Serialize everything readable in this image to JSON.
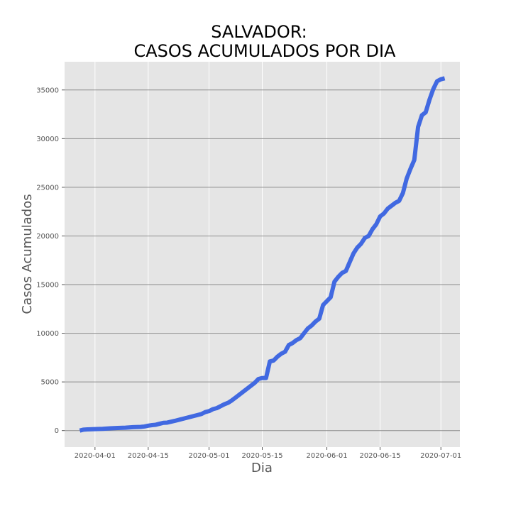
{
  "chart_data": {
    "type": "line",
    "title_lines": [
      "SALVADOR:",
      "CASOS ACUMULADOS POR DIA"
    ],
    "xlabel": "Dia",
    "ylabel": "Casos Acumulados",
    "x_ticks": [
      "2020-04-01",
      "2020-04-15",
      "2020-05-01",
      "2020-05-15",
      "2020-06-01",
      "2020-06-15",
      "2020-07-01"
    ],
    "y_ticks": [
      0,
      5000,
      10000,
      15000,
      20000,
      25000,
      30000,
      35000
    ],
    "ylim": [
      -1700,
      37900
    ],
    "xlim": [
      "2020-03-24",
      "2020-07-06"
    ],
    "grid": true,
    "line_color": "#4169e1",
    "background_color": "#e5e5e5",
    "series": [
      {
        "x": [
          "2020-03-28",
          "2020-03-29",
          "2020-03-30",
          "2020-04-01",
          "2020-04-03",
          "2020-04-05",
          "2020-04-07",
          "2020-04-09",
          "2020-04-11",
          "2020-04-13",
          "2020-04-14",
          "2020-04-15",
          "2020-04-16",
          "2020-04-17",
          "2020-04-18",
          "2020-04-19",
          "2020-04-20",
          "2020-04-22",
          "2020-04-24",
          "2020-04-26",
          "2020-04-27",
          "2020-04-28",
          "2020-04-29",
          "2020-04-30",
          "2020-05-01",
          "2020-05-02",
          "2020-05-03",
          "2020-05-04",
          "2020-05-05",
          "2020-05-06",
          "2020-05-07",
          "2020-05-08",
          "2020-05-09",
          "2020-05-10",
          "2020-05-11",
          "2020-05-12",
          "2020-05-13",
          "2020-05-14",
          "2020-05-15",
          "2020-05-16",
          "2020-05-17",
          "2020-05-18",
          "2020-05-19",
          "2020-05-20",
          "2020-05-21",
          "2020-05-22",
          "2020-05-23",
          "2020-05-24",
          "2020-05-25",
          "2020-05-26",
          "2020-05-27",
          "2020-05-28",
          "2020-05-29",
          "2020-05-30",
          "2020-05-31",
          "2020-06-01",
          "2020-06-02",
          "2020-06-03",
          "2020-06-04",
          "2020-06-05",
          "2020-06-06",
          "2020-06-07",
          "2020-06-08",
          "2020-06-09",
          "2020-06-10",
          "2020-06-11",
          "2020-06-12",
          "2020-06-13",
          "2020-06-14",
          "2020-06-15",
          "2020-06-16",
          "2020-06-17",
          "2020-06-18",
          "2020-06-19",
          "2020-06-20",
          "2020-06-21",
          "2020-06-22",
          "2020-06-23",
          "2020-06-24",
          "2020-06-25",
          "2020-06-26",
          "2020-06-27",
          "2020-06-28",
          "2020-06-29",
          "2020-06-30",
          "2020-07-01",
          "2020-07-02"
        ],
        "values": [
          0,
          100,
          120,
          150,
          180,
          230,
          270,
          300,
          350,
          380,
          420,
          500,
          560,
          600,
          700,
          800,
          820,
          1000,
          1200,
          1400,
          1500,
          1600,
          1700,
          1900,
          2000,
          2200,
          2300,
          2500,
          2700,
          2850,
          3100,
          3400,
          3700,
          4000,
          4300,
          4600,
          4900,
          5300,
          5400,
          5400,
          7100,
          7200,
          7600,
          7900,
          8100,
          8800,
          9000,
          9300,
          9500,
          10000,
          10500,
          10800,
          11200,
          11500,
          12900,
          13300,
          13700,
          15300,
          15800,
          16200,
          16400,
          17300,
          18200,
          18800,
          19200,
          19800,
          20000,
          20700,
          21200,
          22000,
          22300,
          22800,
          23100,
          23400,
          23600,
          24400,
          25900,
          26900,
          27800,
          31200,
          32400,
          32700,
          34000,
          35100,
          35900,
          36100,
          36200
        ]
      }
    ]
  }
}
